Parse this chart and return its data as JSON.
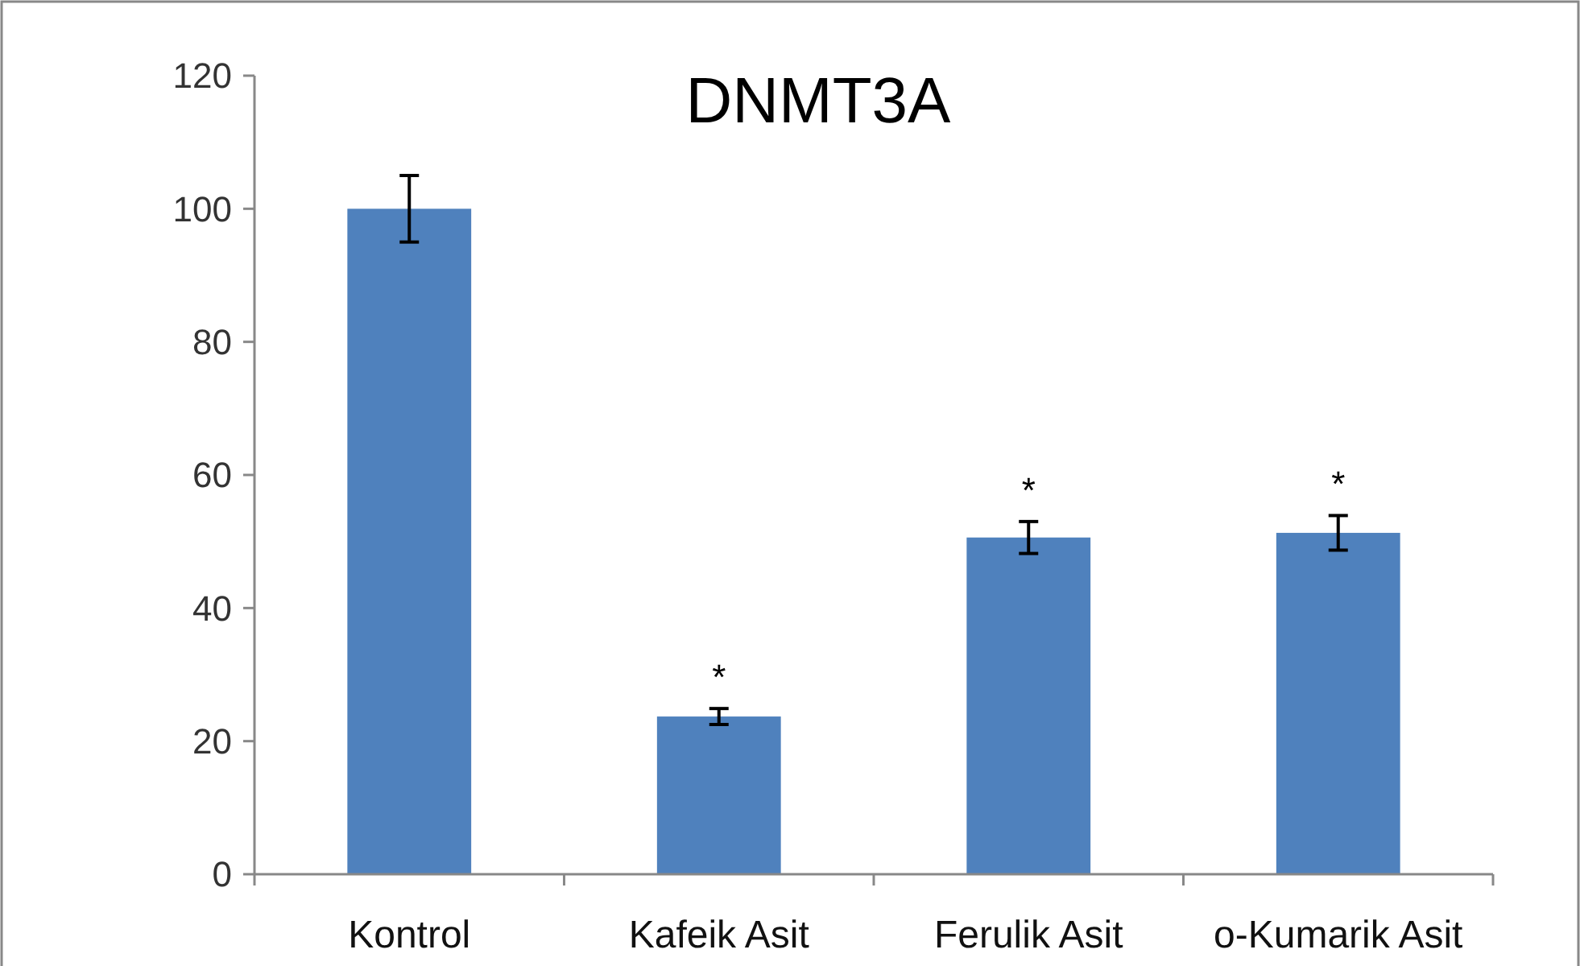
{
  "chart_data": {
    "type": "bar",
    "title": "DNMT3A",
    "categories": [
      "Kontrol",
      "Kafeik Asit",
      "Ferulik Asit",
      "o-Kumarik Asit"
    ],
    "values": [
      100,
      23.7,
      50.6,
      51.3
    ],
    "errors": [
      5,
      1.2,
      2.4,
      2.6
    ],
    "color": "#4f81bd",
    "ylim": [
      0,
      120
    ],
    "yticks": [
      0,
      20,
      40,
      60,
      80,
      100,
      120
    ],
    "grid": false,
    "annotations": [
      {
        "text": "*",
        "x": "Kafeik Asit",
        "y": 24.9
      },
      {
        "text": "*",
        "x": "Ferulik Asit",
        "y": 53
      },
      {
        "text": "*",
        "x": "o-Kumarik Asit",
        "y": 53.9
      }
    ]
  }
}
